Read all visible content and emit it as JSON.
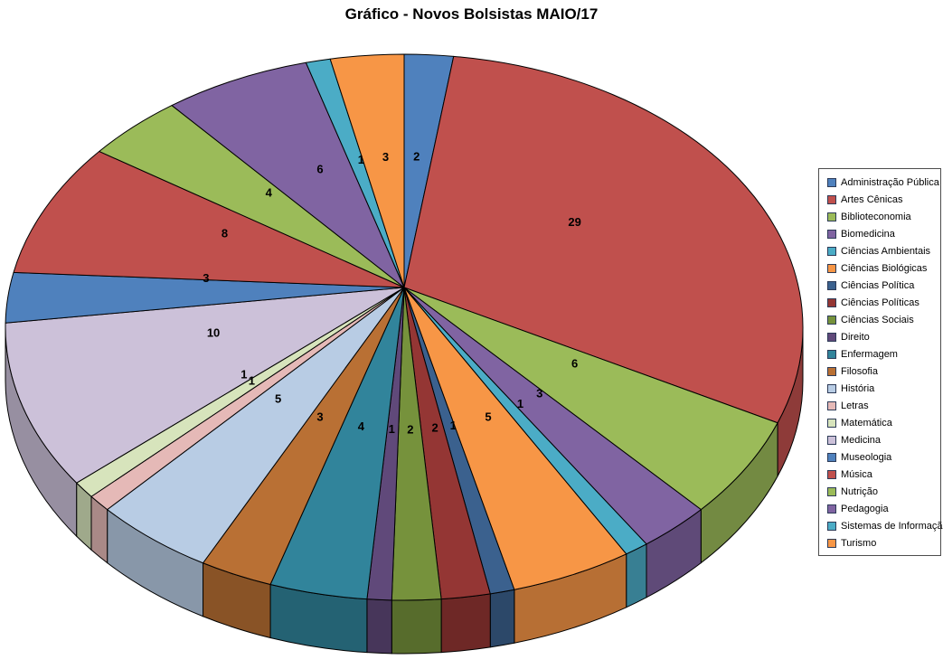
{
  "page": {
    "background": "#FFFFFF"
  },
  "chart_data": {
    "type": "pie",
    "variant": "3d-perspective",
    "title": "Gráfico - Novos Bolsistas MAIO/17",
    "data_labels": "values",
    "label_text_color": "#000000",
    "legend_position": "right",
    "start_angle_deg": 0,
    "direction": "clockwise",
    "total": 101,
    "categories": [
      "Administração Pública",
      "Artes Cênicas",
      "Biblioteconomia",
      "Biomedicina",
      "Ciências Ambientais",
      "Ciências Biológicas",
      "Ciências Política",
      "Ciências Políticas",
      "Ciências Sociais",
      "Direito",
      "Enfermagem",
      "Filosofia",
      "História",
      "Letras",
      "Matemática",
      "Medicina",
      "Museologia",
      "Música",
      "Nutrição",
      "Pedagogia",
      "Sistemas de Informação",
      "Turismo"
    ],
    "values": [
      2,
      29,
      6,
      3,
      1,
      5,
      1,
      2,
      2,
      1,
      4,
      3,
      5,
      1,
      1,
      10,
      3,
      8,
      4,
      6,
      1,
      3
    ],
    "colors": [
      "#4F81BD",
      "#C0504D",
      "#9BBB59",
      "#8064A2",
      "#4BACC6",
      "#F79646",
      "#3B618E",
      "#943634",
      "#76923C",
      "#60497A",
      "#31849B",
      "#B97034",
      "#B8CCE4",
      "#E5B9B7",
      "#D7E4BC",
      "#CCC1D9",
      "#4F81BD",
      "#C0504D",
      "#9BBB59",
      "#8064A2",
      "#4BACC6",
      "#F79646"
    ]
  }
}
